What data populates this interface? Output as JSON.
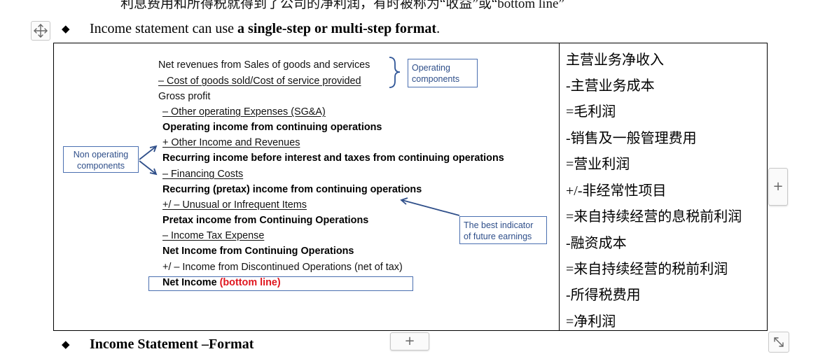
{
  "doc": {
    "top_line": "利息费用和所得税就得到了公司的净利润，有时被称为“收益”或“bottom line”",
    "bullet_glyph": "◆",
    "heading1": {
      "prefix": "Income statement can use ",
      "bold": "a single-step or multi-step format",
      "suffix": "."
    },
    "heading2": {
      "bold": "Income Statement –Format"
    }
  },
  "income_statement": {
    "lines": [
      "Net revenues from Sales of goods and services",
      "–  Cost of goods sold/Cost of service provided",
      "Gross profit",
      "– Other operating Expenses (SG&A)",
      "Operating income from continuing operations",
      "+ Other Income and Revenues",
      "Recurring income before interest and taxes from continuing operations",
      "– Financing Costs",
      "Recurring (pretax) income from continuing operations",
      "+/ – Unusual or Infrequent Items",
      "Pretax income from Continuing Operations",
      "– Income Tax Expense",
      "Net Income from Continuing Operations",
      "+/ – Income from Discontinued Operations (net of tax)"
    ],
    "net_income_label": "Net Income",
    "net_income_tag": "(bottom line)",
    "tag_color": "#e0171f"
  },
  "callouts": {
    "operating": [
      "Operating",
      "components"
    ],
    "non_operating": [
      "Non operating",
      "components"
    ],
    "best_indicator": [
      "The best indicator",
      "of future earnings"
    ],
    "accent_color": "#2f4f8a"
  },
  "chinese_column": [
    "主营业务净收入",
    "-主营业务成本",
    "=毛利润",
    "-销售及一般管理费用",
    "=营业利润",
    "+/-非经常性项目",
    "=来自持续经营的息税前利润",
    "-融资成本",
    "=来自持续经营的税前利润",
    "-所得税费用",
    "=净利润"
  ],
  "controls": {
    "side_plus": "+",
    "bottom_plus": "+"
  }
}
